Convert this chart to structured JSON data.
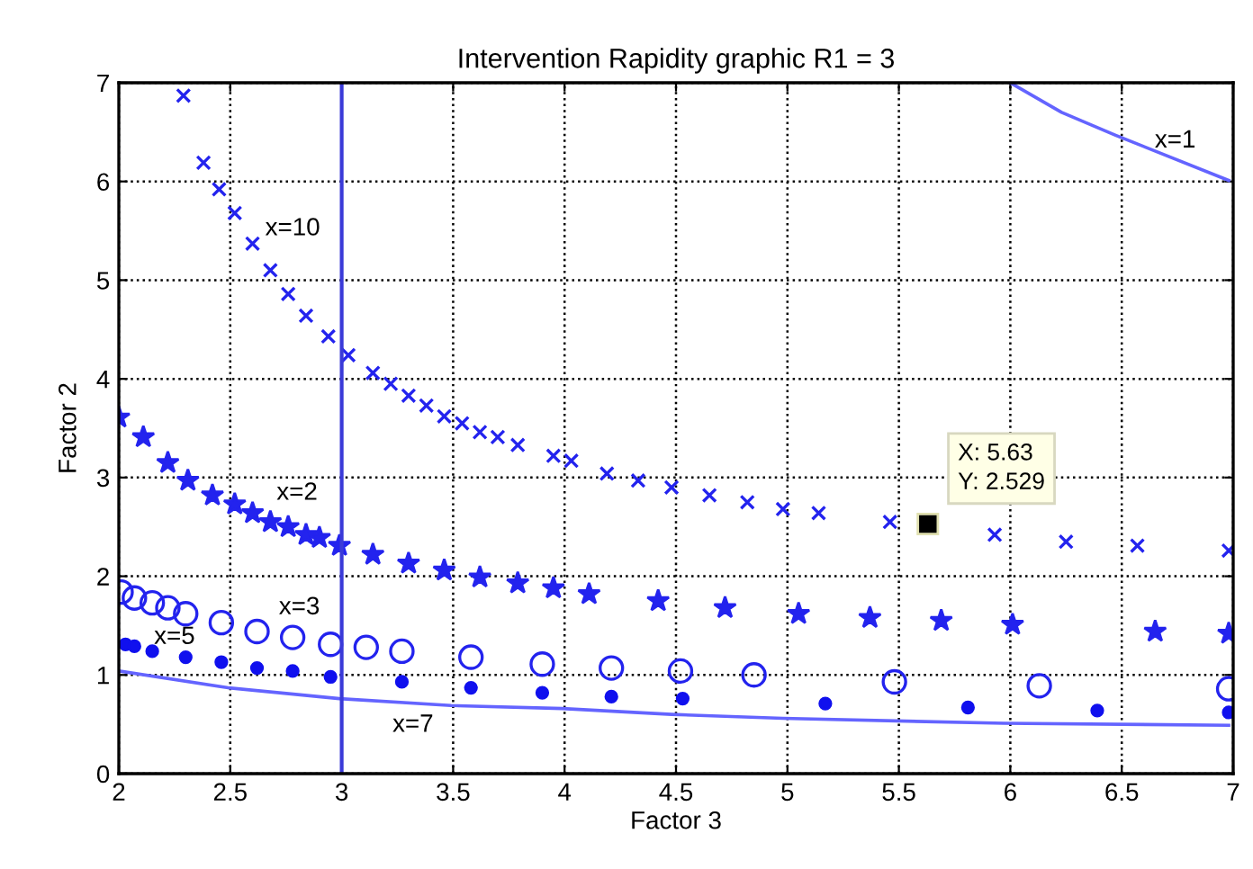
{
  "chart_data": {
    "type": "scatter",
    "title": "Intervention Rapidity graphic R1 = 3",
    "xlabel": "Factor 3",
    "ylabel": "Factor 2",
    "xlim": [
      2,
      7
    ],
    "ylim": [
      0,
      7
    ],
    "xticks": [
      2,
      2.5,
      3,
      3.5,
      4,
      4.5,
      5,
      5.5,
      6,
      6.5,
      7
    ],
    "yticks": [
      0,
      1,
      2,
      3,
      4,
      5,
      6,
      7
    ],
    "grid": true,
    "legend": false,
    "series": [
      {
        "name": "x=1",
        "type": "line",
        "marker": "none",
        "color": "#6464ff",
        "x": [
          6.0,
          6.23,
          6.47,
          6.98
        ],
        "values": [
          7.0,
          6.7,
          6.47,
          6.01
        ]
      },
      {
        "name": "x=10",
        "marker": "cross",
        "color": "#2323ee",
        "x": [
          2.29,
          2.38,
          2.45,
          2.52,
          2.6,
          2.68,
          2.76,
          2.84,
          2.94,
          3.03,
          3.14,
          3.22,
          3.3,
          3.38,
          3.46,
          3.54,
          3.62,
          3.7,
          3.79,
          3.95,
          4.03,
          4.19,
          4.33,
          4.48,
          4.65,
          4.82,
          4.98,
          5.14,
          5.46,
          5.93,
          6.25,
          6.57,
          6.98
        ],
        "values": [
          6.87,
          6.19,
          5.92,
          5.68,
          5.37,
          5.1,
          4.86,
          4.64,
          4.43,
          4.24,
          4.06,
          3.95,
          3.83,
          3.73,
          3.62,
          3.55,
          3.46,
          3.41,
          3.33,
          3.22,
          3.17,
          3.04,
          2.97,
          2.9,
          2.82,
          2.75,
          2.68,
          2.64,
          2.55,
          2.42,
          2.35,
          2.31,
          2.26
        ]
      },
      {
        "name": "x=2",
        "marker": "star",
        "color": "#2323ee",
        "x": [
          2.0,
          2.11,
          2.22,
          2.31,
          2.42,
          2.52,
          2.6,
          2.68,
          2.76,
          2.84,
          2.9,
          2.99,
          3.14,
          3.3,
          3.46,
          3.62,
          3.79,
          3.95,
          4.11,
          4.42,
          4.72,
          5.05,
          5.37,
          5.69,
          6.01,
          6.65,
          6.98
        ],
        "values": [
          3.61,
          3.41,
          3.15,
          2.97,
          2.82,
          2.73,
          2.64,
          2.55,
          2.5,
          2.42,
          2.39,
          2.31,
          2.22,
          2.13,
          2.06,
          1.99,
          1.93,
          1.88,
          1.82,
          1.75,
          1.68,
          1.62,
          1.58,
          1.55,
          1.51,
          1.44,
          1.42
        ]
      },
      {
        "name": "x=3",
        "marker": "circle",
        "color": "#2323ee",
        "x": [
          2.01,
          2.07,
          2.15,
          2.22,
          2.3,
          2.46,
          2.62,
          2.78,
          2.95,
          3.11,
          3.27,
          3.58,
          3.9,
          4.21,
          4.52,
          4.85,
          5.48,
          6.13,
          6.98
        ],
        "values": [
          1.84,
          1.78,
          1.73,
          1.68,
          1.62,
          1.53,
          1.44,
          1.38,
          1.31,
          1.28,
          1.24,
          1.18,
          1.11,
          1.07,
          1.04,
          1.0,
          0.93,
          0.89,
          0.86
        ]
      },
      {
        "name": "x=5",
        "marker": "point",
        "color": "#1010ee",
        "x": [
          2.03,
          2.07,
          2.15,
          2.3,
          2.46,
          2.62,
          2.78,
          2.95,
          3.27,
          3.58,
          3.9,
          4.21,
          4.53,
          5.17,
          5.81,
          6.39,
          6.98
        ],
        "values": [
          1.31,
          1.29,
          1.24,
          1.18,
          1.13,
          1.07,
          1.04,
          0.98,
          0.93,
          0.87,
          0.82,
          0.78,
          0.76,
          0.71,
          0.67,
          0.64,
          0.62
        ]
      },
      {
        "name": "x=7",
        "type": "line",
        "marker": "none",
        "color": "#6464ff",
        "x": [
          2.0,
          2.49,
          2.99,
          3.49,
          3.99,
          4.48,
          4.98,
          5.97,
          6.98
        ],
        "values": [
          1.04,
          0.87,
          0.76,
          0.69,
          0.66,
          0.6,
          0.56,
          0.51,
          0.49
        ]
      }
    ],
    "ref_lines": [
      {
        "axis": "x",
        "value": 3,
        "color": "#3a3ad8"
      }
    ],
    "annotations": [
      {
        "text": "X: 5.63\nY: 2.529",
        "x": 5.63,
        "y": 2.529
      }
    ]
  }
}
